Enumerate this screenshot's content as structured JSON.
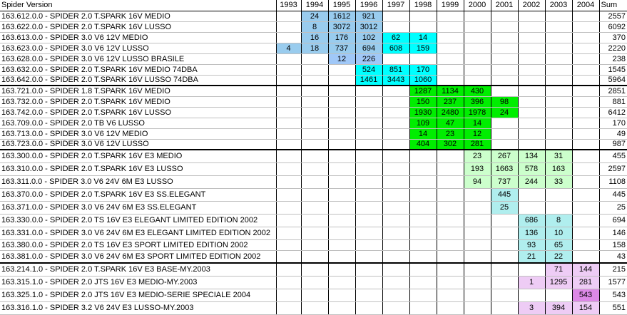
{
  "header": {
    "name": "Spider Version",
    "years": [
      "1993",
      "1994",
      "1995",
      "1996",
      "1997",
      "1998",
      "1999",
      "2000",
      "2001",
      "2002",
      "2003",
      "2004"
    ],
    "sum": "Sum"
  },
  "palette": {
    "B": "#99ccee",
    "L": "#a0c8f8",
    "C": "#00ffff",
    "G": "#00ee00",
    "g": "#ccffcc",
    "T": "#b0eeee",
    "P": "#eeccf5",
    "M": "#dd88e6"
  },
  "rows": [
    {
      "name": "163.612.0.0 - SPIDER 2.0 T.SPARK 16V MEDIO",
      "cells": [
        "",
        "24",
        "1612",
        "921",
        "",
        "",
        "",
        "",
        "",
        "",
        "",
        ""
      ],
      "fills": "-BBB--------",
      "sum": "2557"
    },
    {
      "name": "163.622.0.0 - SPIDER 2.0 T.SPARK 16V LUSSO",
      "cells": [
        "",
        "8",
        "3072",
        "3012",
        "",
        "",
        "",
        "",
        "",
        "",
        "",
        ""
      ],
      "fills": "-BBB--------",
      "sum": "6092"
    },
    {
      "name": "163.613.0.0 - SPIDER 3.0 V6 12V MEDIO",
      "cells": [
        "",
        "16",
        "176",
        "102",
        "62",
        "14",
        "",
        "",
        "",
        "",
        "",
        ""
      ],
      "fills": "-BBBCC------",
      "sum": "370"
    },
    {
      "name": "163.623.0.0 - SPIDER 3.0 V6 12V LUSSO",
      "cells": [
        "4",
        "18",
        "737",
        "694",
        "608",
        "159",
        "",
        "",
        "",
        "",
        "",
        ""
      ],
      "fills": "BBBBCC------",
      "sum": "2220"
    },
    {
      "name": "163.628.0.0 - SPIDER 3.0 V6 12V LUSSO BRASILE",
      "cells": [
        "",
        "",
        "12",
        "226",
        "",
        "",
        "",
        "",
        "",
        "",
        "",
        ""
      ],
      "fills": "--LL--------",
      "sum": "238"
    },
    {
      "name": "163.632.0.0 - SPIDER 2.0 T.SPARK 16V MEDIO 74DBA",
      "cells": [
        "",
        "",
        "",
        "524",
        "851",
        "170",
        "",
        "",
        "",
        "",
        "",
        ""
      ],
      "fills": "---CCC------",
      "sum": "1545"
    },
    {
      "name": "163.642.0.0 - SPIDER 2.0 T.SPARK 16V LUSSO 74DBA",
      "cells": [
        "",
        "",
        "",
        "1461",
        "3443",
        "1060",
        "",
        "",
        "",
        "",
        "",
        ""
      ],
      "fills": "---CCC------",
      "sum": "5964",
      "sep": true
    },
    {
      "name": "163.721.0.0 - SPIDER 1.8 T.SPARK 16V MEDIO",
      "cells": [
        "",
        "",
        "",
        "",
        "",
        "1287",
        "1134",
        "430",
        "",
        "",
        "",
        ""
      ],
      "fills": "-----GGG----",
      "sum": "2851"
    },
    {
      "name": "163.732.0.0 - SPIDER 2.0 T.SPARK 16V MEDIO",
      "cells": [
        "",
        "",
        "",
        "",
        "",
        "150",
        "237",
        "396",
        "98",
        "",
        "",
        ""
      ],
      "fills": "-----GGGG---",
      "sum": "881"
    },
    {
      "name": "163.742.0.0 - SPIDER 2.0 T.SPARK 16V LUSSO",
      "cells": [
        "",
        "",
        "",
        "",
        "",
        "1930",
        "2480",
        "1978",
        "24",
        "",
        "",
        ""
      ],
      "fills": "-----GGGG---",
      "sum": "6412"
    },
    {
      "name": "163.709.0.0 - SPIDER 2.0 TB V6 LUSSO",
      "cells": [
        "",
        "",
        "",
        "",
        "",
        "109",
        "47",
        "14",
        "",
        "",
        "",
        ""
      ],
      "fills": "-----GGG----",
      "sum": "170"
    },
    {
      "name": "163.713.0.0 - SPIDER 3.0 V6 12V MEDIO",
      "cells": [
        "",
        "",
        "",
        "",
        "",
        "14",
        "23",
        "12",
        "",
        "",
        "",
        ""
      ],
      "fills": "-----GGG----",
      "sum": "49"
    },
    {
      "name": "163.723.0.0 - SPIDER 3.0 V6 12V LUSSO",
      "cells": [
        "",
        "",
        "",
        "",
        "",
        "404",
        "302",
        "281",
        "",
        "",
        "",
        ""
      ],
      "fills": "-----GGG----",
      "sum": "987",
      "sep": true
    },
    {
      "name": "163.300.0.0 - SPIDER 2.0 T.SPARK 16V E3 MEDIO",
      "cells": [
        "",
        "",
        "",
        "",
        "",
        "",
        "",
        "23",
        "267",
        "134",
        "31",
        ""
      ],
      "fills": "-------gggg-",
      "sum": "455"
    },
    {
      "name": "163.310.0.0 - SPIDER 2.0 T.SPARK 16V E3 LUSSO",
      "cells": [
        "",
        "",
        "",
        "",
        "",
        "",
        "",
        "193",
        "1663",
        "578",
        "163",
        ""
      ],
      "fills": "-------gggg-",
      "sum": "2597"
    },
    {
      "name": "163.311.0.0 - SPIDER 3.0 V6 24V 6M E3 LUSSO",
      "cells": [
        "",
        "",
        "",
        "",
        "",
        "",
        "",
        "94",
        "737",
        "244",
        "33",
        ""
      ],
      "fills": "-------gggg-",
      "sum": "1108"
    },
    {
      "name": "163.370.0.0 - SPIDER 2.0 T.SPARK 16V E3 SS.ELEGANT",
      "cells": [
        "",
        "",
        "",
        "",
        "",
        "",
        "",
        "",
        "445",
        "",
        "",
        ""
      ],
      "fills": "--------T---",
      "sum": "445"
    },
    {
      "name": "163.371.0.0 - SPIDER 3.0 V6 24V 6M E3 SS.ELEGANT",
      "cells": [
        "",
        "",
        "",
        "",
        "",
        "",
        "",
        "",
        "25",
        "",
        "",
        ""
      ],
      "fills": "--------T---",
      "sum": "25"
    },
    {
      "name": "163.330.0.0 - SPIDER 2.0 TS 16V E3 ELEGANT LIMITED EDITION 2002",
      "cells": [
        "",
        "",
        "",
        "",
        "",
        "",
        "",
        "",
        "",
        "686",
        "8",
        ""
      ],
      "fills": "---------TT-",
      "sum": "694"
    },
    {
      "name": "163.331.0.0 - SPIDER 3.0 V6 24V 6M E3 ELEGANT LIMITED EDITION 2002",
      "cells": [
        "",
        "",
        "",
        "",
        "",
        "",
        "",
        "",
        "",
        "136",
        "10",
        ""
      ],
      "fills": "---------TT-",
      "sum": "146"
    },
    {
      "name": "163.380.0.0 - SPIDER 2.0 TS 16V E3 SPORT LIMITED EDITION 2002",
      "cells": [
        "",
        "",
        "",
        "",
        "",
        "",
        "",
        "",
        "",
        "93",
        "65",
        ""
      ],
      "fills": "---------TT-",
      "sum": "158"
    },
    {
      "name": "163.381.0.0 - SPIDER 3.0 V6 24V 6M E3 SPORT LIMITED EDITION 2002",
      "cells": [
        "",
        "",
        "",
        "",
        "",
        "",
        "",
        "",
        "",
        "21",
        "22",
        ""
      ],
      "fills": "---------TT-",
      "sum": "43",
      "sep": true
    },
    {
      "name": "163.214.1.0 - SPIDER 2.0 T.SPARK 16V E3 BASE-MY.2003",
      "cells": [
        "",
        "",
        "",
        "",
        "",
        "",
        "",
        "",
        "",
        "",
        "71",
        "144"
      ],
      "fills": "----------PP",
      "sum": "215"
    },
    {
      "name": "163.315.1.0 - SPIDER 2.0 JTS 16V E3 MEDIO-MY.2003",
      "cells": [
        "",
        "",
        "",
        "",
        "",
        "",
        "",
        "",
        "",
        "1",
        "1295",
        "281"
      ],
      "fills": "---------PPP",
      "sum": "1577"
    },
    {
      "name": "163.325.1.0 - SPIDER 2.0 JTS 16V E3 MEDIO-SERIE SPECIALE 2004",
      "cells": [
        "",
        "",
        "",
        "",
        "",
        "",
        "",
        "",
        "",
        "",
        "",
        "543"
      ],
      "fills": "-----------M",
      "sum": "543"
    },
    {
      "name": "163.316.1.0 - SPIDER 3.2 V6 24V E3 LUSSO-MY.2003",
      "cells": [
        "",
        "",
        "",
        "",
        "",
        "",
        "",
        "",
        "",
        "3",
        "394",
        "154"
      ],
      "fills": "---------PPP",
      "sum": "551"
    }
  ]
}
